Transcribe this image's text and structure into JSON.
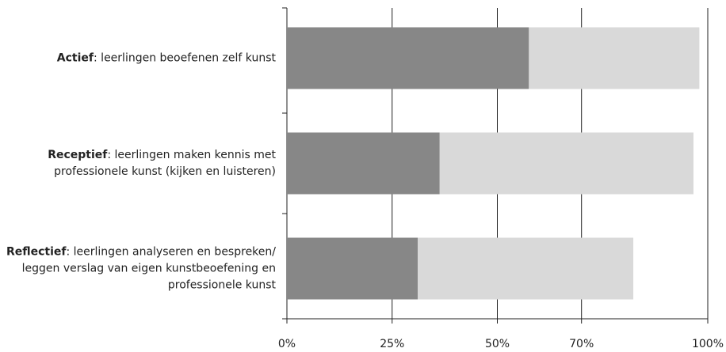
{
  "chart_data": {
    "type": "stacked-bar-horizontal",
    "categories": [
      "Actief: leerlingen beoefenen zelf kunst",
      "Receptief: leerlingen maken kennis met professionele kunst (kijken en luisteren)",
      "Reflectief: leerlingen analyseren en bespreken/ leggen verslag van eigen kunstbeoefening en professionele kunst"
    ],
    "series": [
      {
        "color": "#878787",
        "values": [
          57.5,
          36.3,
          31.1
        ]
      },
      {
        "color": "#d9d9d9",
        "values": [
          40.5,
          60.3,
          51.2
        ]
      }
    ],
    "xlim": [
      0,
      100
    ],
    "xticks": [
      {
        "value": 0,
        "label": "0%"
      },
      {
        "value": 25,
        "label": "25%"
      },
      {
        "value": 50,
        "label": "50%"
      },
      {
        "value": 70,
        "label": "70%"
      },
      {
        "value": 100,
        "label": "100%"
      }
    ],
    "grid": true
  }
}
